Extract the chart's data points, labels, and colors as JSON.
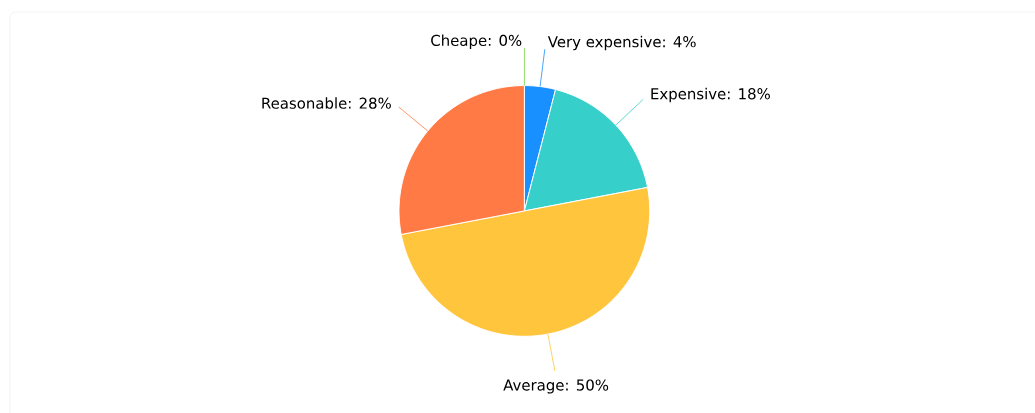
{
  "chart_data": {
    "type": "pie",
    "categories": [
      "Very expensive",
      "Expensive",
      "Average",
      "Reasonable",
      "Cheape"
    ],
    "values": [
      4,
      18,
      50,
      28,
      0
    ],
    "colors": [
      "#1890ff",
      "#36cfc9",
      "#ffc53d",
      "#ff7a45",
      "#73d13d"
    ],
    "value_labels": [
      ": 4%",
      ": 18%",
      ": 50%",
      ": 28%",
      ": 0%"
    ]
  }
}
